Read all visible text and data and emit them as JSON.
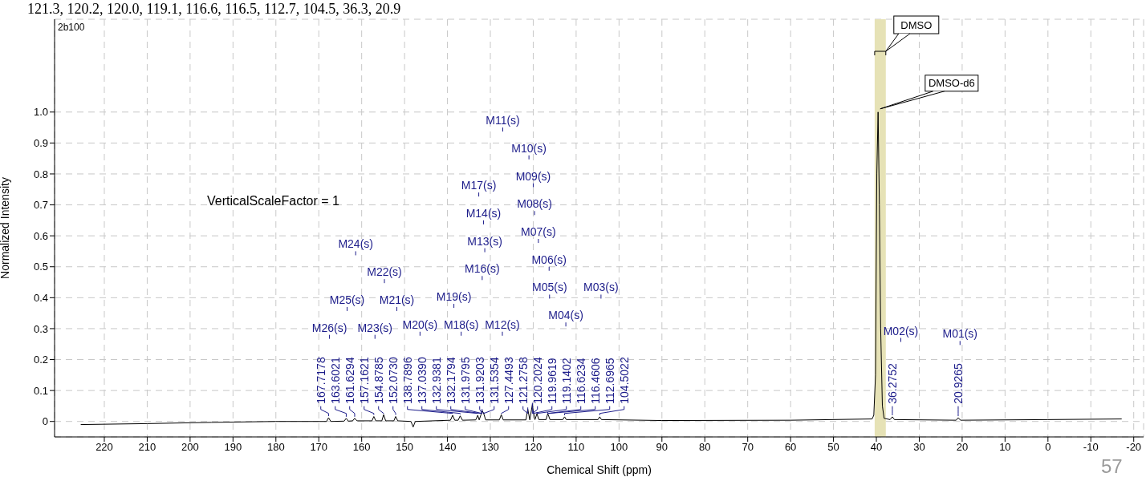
{
  "chart_data": {
    "type": "line",
    "xlabel": "Chemical Shift (ppm)",
    "ylabel": "Normalized Intensity",
    "color": "#000000",
    "x": [
      225.5,
      210,
      195,
      180,
      170,
      168.2,
      167.7178,
      167.2,
      164.1,
      163.6021,
      163.1,
      162.1,
      161.6294,
      161.1,
      157.6,
      157.1621,
      156.7,
      155.3,
      154.8785,
      154.4,
      152.5,
      152.073,
      151.6,
      148.5,
      148,
      147.5,
      139.3,
      138.7896,
      138.3,
      137.5,
      137.039,
      136.5,
      133.4,
      132.9381,
      132.6,
      132.1794,
      131.9795,
      131.9203,
      131.5354,
      131.1,
      127.9,
      127.4493,
      127,
      121.7,
      121.2758,
      120.8,
      120.2024,
      119.9619,
      119.6,
      119.1402,
      118.7,
      117,
      116.6234,
      116.4606,
      116.1,
      113.1,
      112.6965,
      112.3,
      104.9,
      104.5022,
      104.1,
      90,
      60,
      41,
      40.6,
      40.2,
      39.9,
      39.6,
      39.3,
      39,
      38.6,
      38.2,
      36.8,
      36.2752,
      35.8,
      21.4,
      20.9265,
      20.4,
      0,
      -17.2
    ],
    "values": [
      -0.01,
      -0.007,
      -0.003,
      0,
      0,
      0,
      0.012,
      0,
      0.001,
      0.01,
      0.001,
      0.002,
      0.01,
      0.002,
      0.002,
      0.016,
      0.002,
      0.002,
      0.022,
      0.002,
      0.002,
      0.016,
      0.002,
      0,
      -0.018,
      0,
      0.004,
      0.02,
      0.004,
      0.004,
      0.018,
      0.004,
      0.005,
      0.02,
      0.005,
      0.022,
      0.03,
      0.035,
      0.025,
      0.005,
      0.005,
      0.022,
      0.005,
      0.005,
      0.04,
      0.005,
      0.055,
      0.03,
      0.006,
      0.025,
      0.006,
      0.006,
      0.025,
      0.02,
      0.006,
      0.006,
      0.015,
      0.006,
      0.006,
      0.015,
      0.006,
      0.003,
      0.004,
      0.008,
      0.02,
      0.15,
      0.8,
      1.0,
      0.7,
      0.3,
      0.05,
      0.01,
      0.006,
      0.015,
      0.006,
      0.004,
      0.012,
      0.004,
      0.006,
      0.008
    ],
    "xlim": [
      231.6,
      -22.3
    ],
    "xticks": [
      220,
      210,
      200,
      190,
      180,
      170,
      160,
      150,
      140,
      130,
      120,
      110,
      100,
      90,
      80,
      70,
      60,
      50,
      40,
      30,
      20,
      10,
      0,
      -10,
      -20
    ],
    "ylim": [
      -0.05,
      1.3
    ],
    "yticks": [
      0,
      0.1,
      0.2,
      0.3,
      0.4,
      0.5,
      0.6,
      0.7,
      0.8,
      0.9,
      {
        "value": 1,
        "label": "1.0"
      }
    ],
    "grid": true,
    "bands": [
      {
        "axis": "x",
        "from": 40.4,
        "to": 37.8,
        "label": "DMSO-d6",
        "color": "#e6e2b6"
      }
    ],
    "annotations": [
      "121.3, 120.2, 120.0, 119.1, 116.6, 116.5, 112.7, 104.5, 36.3, 20.9",
      "2b100",
      "VerticalScaleFactor = 1",
      "DMSO",
      "57",
      "M01(s)",
      "M02(s)",
      "M03(s)",
      "M04(s)",
      "M05(s)",
      "M06(s)",
      "M07(s)",
      "M08(s)",
      "M09(s)",
      "M10(s)",
      "M11(s)",
      "M12(s)",
      "M13(s)",
      "M14(s)",
      "M16(s)",
      "M17(s)",
      "M18(s)",
      "M19(s)",
      "M20(s)",
      "M21(s)",
      "M22(s)",
      "M23(s)",
      "M24(s)",
      "M25(s)",
      "M26(s)",
      {
        "text": "167.7178",
        "x": 167.7178,
        "y": 0.012
      },
      {
        "text": "163.6021",
        "x": 163.6021,
        "y": 0.01
      },
      {
        "text": "161.6294",
        "x": 161.6294,
        "y": 0.01
      },
      {
        "text": "157.1621",
        "x": 157.1621,
        "y": 0.016
      },
      {
        "text": "154.8785",
        "x": 154.8785,
        "y": 0.022
      },
      {
        "text": "152.0730",
        "x": 152.073,
        "y": 0.016
      },
      {
        "text": "138.7896",
        "x": 138.7896,
        "y": 0.02
      },
      {
        "text": "137.0390",
        "x": 137.039,
        "y": 0.018
      },
      {
        "text": "132.9381",
        "x": 132.9381,
        "y": 0.02
      },
      {
        "text": "132.1794",
        "x": 132.1794,
        "y": 0.022
      },
      {
        "text": "131.9795",
        "x": 131.9795,
        "y": 0.03
      },
      {
        "text": "131.9203",
        "x": 131.9203,
        "y": 0.035
      },
      {
        "text": "131.5354",
        "x": 131.5354,
        "y": 0.025
      },
      {
        "text": "127.4493",
        "x": 127.4493,
        "y": 0.022
      },
      {
        "text": "121.2758",
        "x": 121.2758,
        "y": 0.04
      },
      {
        "text": "120.2024",
        "x": 120.2024,
        "y": 0.055
      },
      {
        "text": "119.9619",
        "x": 119.9619,
        "y": 0.03
      },
      {
        "text": "119.1402",
        "x": 119.1402,
        "y": 0.025
      },
      {
        "text": "116.6234",
        "x": 116.6234,
        "y": 0.025
      },
      {
        "text": "116.4606",
        "x": 116.4606,
        "y": 0.02
      },
      {
        "text": "112.6965",
        "x": 112.6965,
        "y": 0.015
      },
      {
        "text": "104.5022",
        "x": 104.5022,
        "y": 0.015
      },
      {
        "text": "36.2752",
        "x": 36.2752,
        "y": 0.015
      },
      {
        "text": "20.9265",
        "x": 20.9265,
        "y": 0.012
      }
    ]
  }
}
